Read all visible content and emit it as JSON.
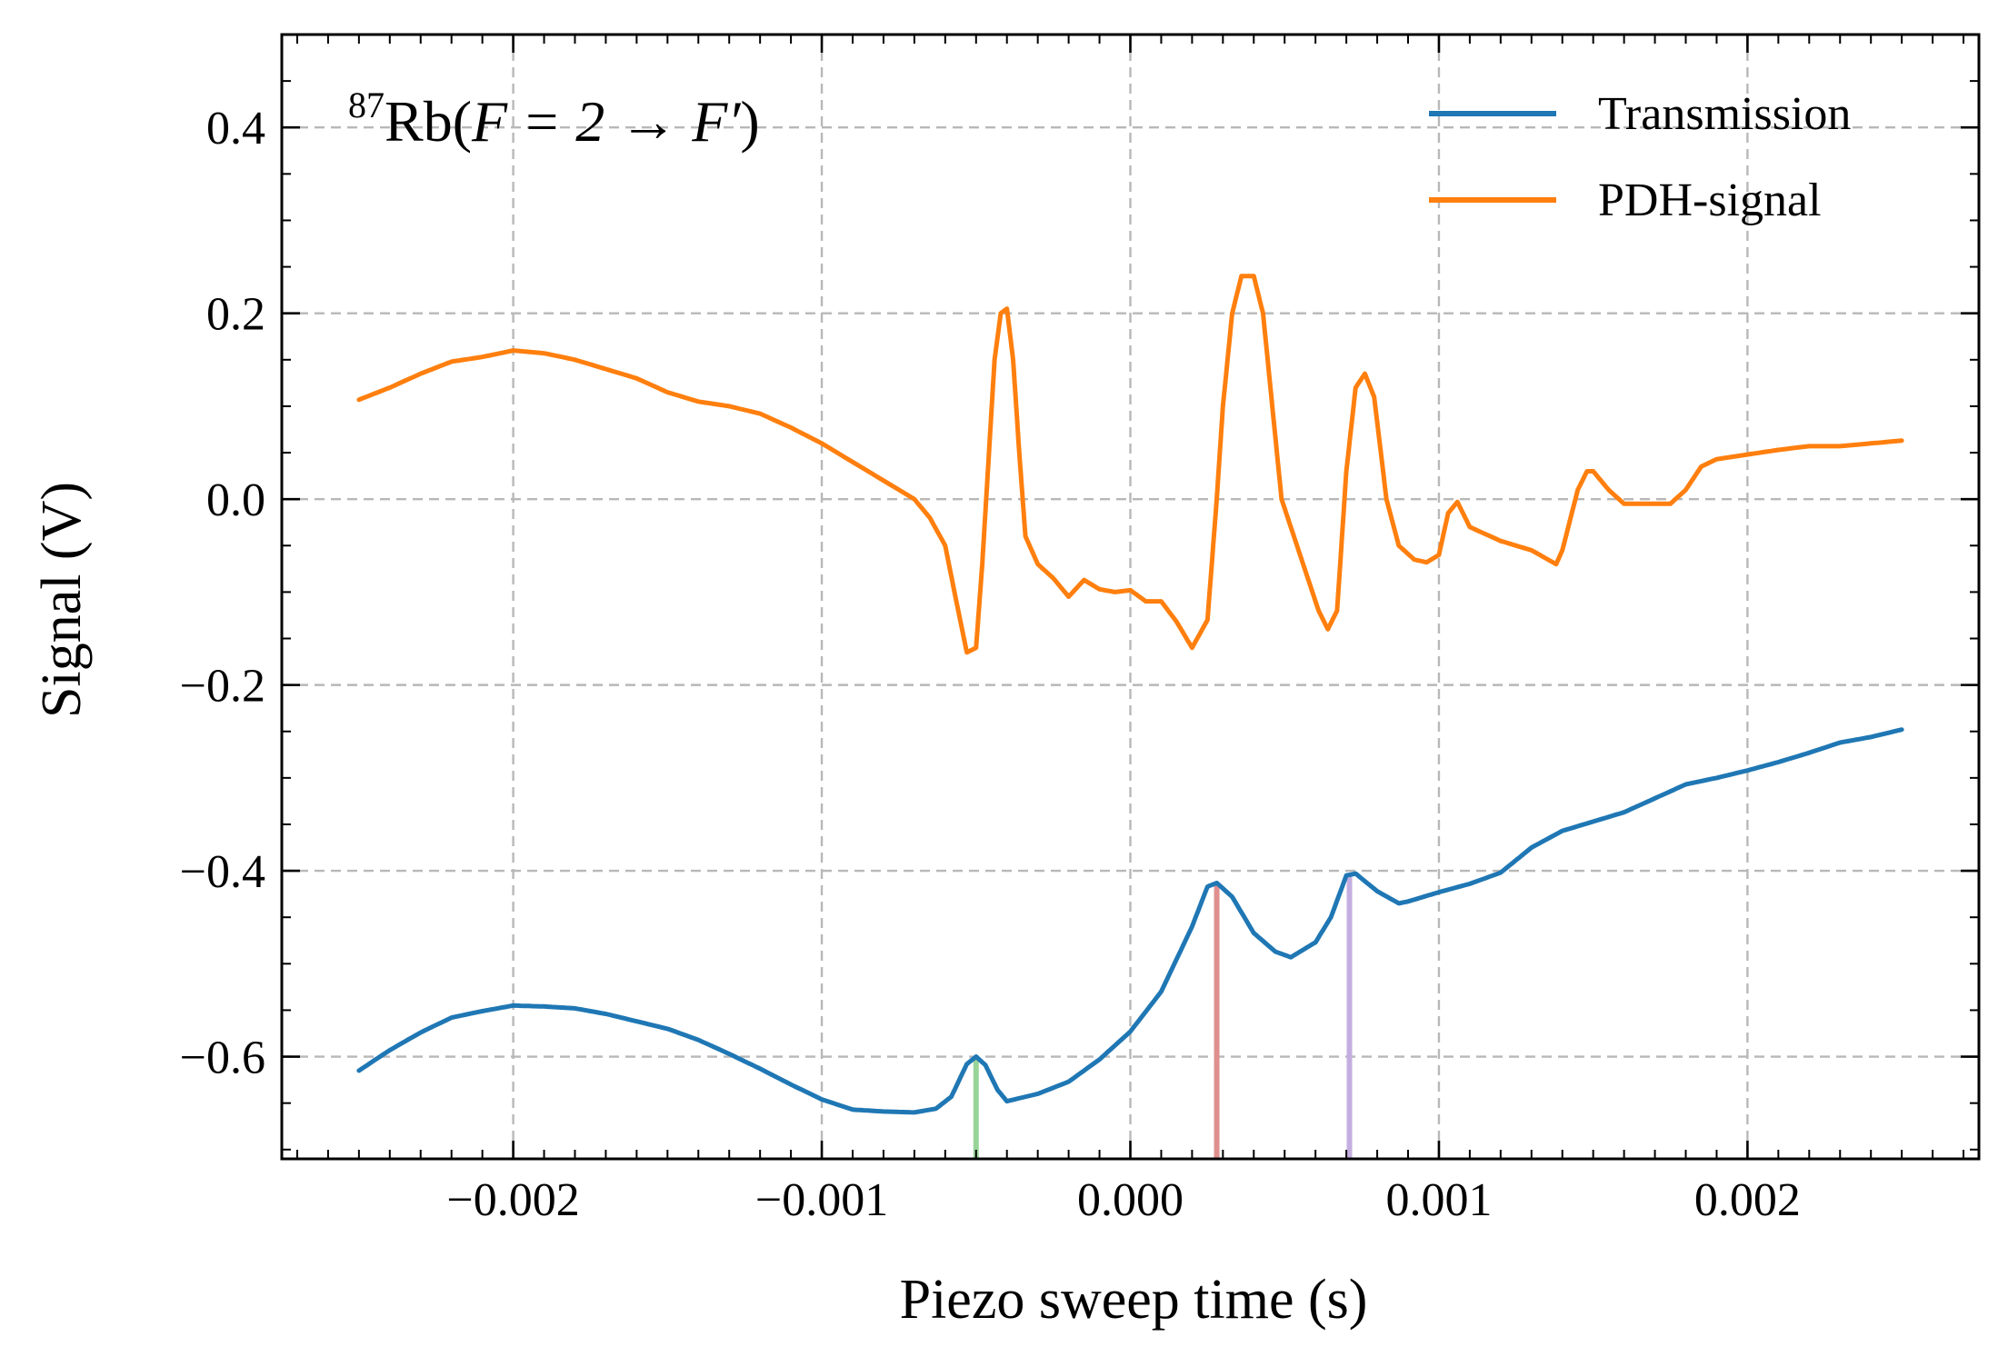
{
  "chart_data": {
    "type": "line",
    "title": "",
    "xlabel": "Piezo sweep time (s)",
    "ylabel": "Signal (V)",
    "xlim": [
      -0.00275,
      0.00275
    ],
    "ylim": [
      -0.71,
      0.5
    ],
    "grid": true,
    "legend_position": "top-right",
    "annotation": {
      "superscript": "87",
      "text_main": "Rb(",
      "text_math": "F = 2 → F′",
      "text_close": ")"
    },
    "x_ticks": [
      {
        "value": -0.002,
        "label": "−0.002"
      },
      {
        "value": -0.001,
        "label": "−0.001"
      },
      {
        "value": 0.0,
        "label": "0.000"
      },
      {
        "value": 0.001,
        "label": "0.001"
      },
      {
        "value": 0.002,
        "label": "0.002"
      }
    ],
    "y_ticks": [
      {
        "value": 0.4,
        "label": "0.4"
      },
      {
        "value": 0.2,
        "label": "0.2"
      },
      {
        "value": 0.0,
        "label": "0.0"
      },
      {
        "value": -0.2,
        "label": "−0.2"
      },
      {
        "value": -0.4,
        "label": "−0.4"
      },
      {
        "value": -0.6,
        "label": "−0.6"
      }
    ],
    "series": [
      {
        "name": "Transmission",
        "color": "#1f77b4",
        "points": [
          [
            -0.0025,
            -0.615
          ],
          [
            -0.0024,
            -0.593
          ],
          [
            -0.0023,
            -0.574
          ],
          [
            -0.0022,
            -0.558
          ],
          [
            -0.0021,
            -0.551
          ],
          [
            -0.002,
            -0.545
          ],
          [
            -0.0019,
            -0.546
          ],
          [
            -0.0018,
            -0.548
          ],
          [
            -0.0017,
            -0.554
          ],
          [
            -0.0016,
            -0.562
          ],
          [
            -0.0015,
            -0.57
          ],
          [
            -0.0014,
            -0.582
          ],
          [
            -0.0013,
            -0.597
          ],
          [
            -0.0012,
            -0.613
          ],
          [
            -0.0011,
            -0.63
          ],
          [
            -0.001,
            -0.646
          ],
          [
            -0.0009,
            -0.657
          ],
          [
            -0.0008,
            -0.659
          ],
          [
            -0.0007,
            -0.66
          ],
          [
            -0.00063,
            -0.656
          ],
          [
            -0.00058,
            -0.643
          ],
          [
            -0.00053,
            -0.608
          ],
          [
            -0.0005,
            -0.6
          ],
          [
            -0.00047,
            -0.609
          ],
          [
            -0.00043,
            -0.636
          ],
          [
            -0.0004,
            -0.648
          ],
          [
            -0.0003,
            -0.64
          ],
          [
            -0.0002,
            -0.627
          ],
          [
            -0.0001,
            -0.603
          ],
          [
            0.0,
            -0.573
          ],
          [
            0.0001,
            -0.53
          ],
          [
            0.0002,
            -0.46
          ],
          [
            0.00025,
            -0.417
          ],
          [
            0.00028,
            -0.413
          ],
          [
            0.00033,
            -0.428
          ],
          [
            0.0004,
            -0.467
          ],
          [
            0.00047,
            -0.487
          ],
          [
            0.00052,
            -0.493
          ],
          [
            0.0006,
            -0.477
          ],
          [
            0.00065,
            -0.45
          ],
          [
            0.0007,
            -0.405
          ],
          [
            0.00073,
            -0.403
          ],
          [
            0.0008,
            -0.422
          ],
          [
            0.00087,
            -0.435
          ],
          [
            0.0009,
            -0.433
          ],
          [
            0.001,
            -0.423
          ],
          [
            0.0011,
            -0.414
          ],
          [
            0.0012,
            -0.402
          ],
          [
            0.0013,
            -0.375
          ],
          [
            0.0014,
            -0.357
          ],
          [
            0.0015,
            -0.347
          ],
          [
            0.0016,
            -0.337
          ],
          [
            0.0017,
            -0.322
          ],
          [
            0.0018,
            -0.307
          ],
          [
            0.0019,
            -0.3
          ],
          [
            0.002,
            -0.292
          ],
          [
            0.0021,
            -0.283
          ],
          [
            0.0022,
            -0.273
          ],
          [
            0.0023,
            -0.262
          ],
          [
            0.0024,
            -0.256
          ],
          [
            0.0025,
            -0.248
          ]
        ]
      },
      {
        "name": "PDH-signal",
        "color": "#ff7f0e",
        "points": [
          [
            -0.0025,
            0.107
          ],
          [
            -0.0024,
            0.12
          ],
          [
            -0.0023,
            0.135
          ],
          [
            -0.0022,
            0.148
          ],
          [
            -0.0021,
            0.153
          ],
          [
            -0.002,
            0.16
          ],
          [
            -0.0019,
            0.157
          ],
          [
            -0.0018,
            0.15
          ],
          [
            -0.0017,
            0.14
          ],
          [
            -0.0016,
            0.13
          ],
          [
            -0.0015,
            0.115
          ],
          [
            -0.0014,
            0.105
          ],
          [
            -0.0013,
            0.1
          ],
          [
            -0.0012,
            0.092
          ],
          [
            -0.0011,
            0.077
          ],
          [
            -0.001,
            0.06
          ],
          [
            -0.0009,
            0.04
          ],
          [
            -0.0008,
            0.02
          ],
          [
            -0.0007,
            0.0
          ],
          [
            -0.00065,
            -0.02
          ],
          [
            -0.0006,
            -0.05
          ],
          [
            -0.00057,
            -0.1
          ],
          [
            -0.00053,
            -0.165
          ],
          [
            -0.0005,
            -0.16
          ],
          [
            -0.00048,
            -0.07
          ],
          [
            -0.00046,
            0.04
          ],
          [
            -0.00044,
            0.15
          ],
          [
            -0.00042,
            0.2
          ],
          [
            -0.0004,
            0.205
          ],
          [
            -0.00038,
            0.15
          ],
          [
            -0.00036,
            0.05
          ],
          [
            -0.00034,
            -0.04
          ],
          [
            -0.0003,
            -0.07
          ],
          [
            -0.00025,
            -0.085
          ],
          [
            -0.0002,
            -0.105
          ],
          [
            -0.00015,
            -0.087
          ],
          [
            -0.0001,
            -0.097
          ],
          [
            -5e-05,
            -0.1
          ],
          [
            0.0,
            -0.098
          ],
          [
            5e-05,
            -0.11
          ],
          [
            0.0001,
            -0.11
          ],
          [
            0.00015,
            -0.132
          ],
          [
            0.0002,
            -0.16
          ],
          [
            0.00025,
            -0.13
          ],
          [
            0.00028,
            0.0
          ],
          [
            0.0003,
            0.1
          ],
          [
            0.00033,
            0.2
          ],
          [
            0.00036,
            0.24
          ],
          [
            0.0004,
            0.24
          ],
          [
            0.00043,
            0.2
          ],
          [
            0.00046,
            0.1
          ],
          [
            0.00049,
            0.0
          ],
          [
            0.00052,
            -0.03
          ],
          [
            0.00055,
            -0.06
          ],
          [
            0.00058,
            -0.09
          ],
          [
            0.00061,
            -0.12
          ],
          [
            0.00064,
            -0.14
          ],
          [
            0.00067,
            -0.12
          ],
          [
            0.0007,
            0.03
          ],
          [
            0.00073,
            0.12
          ],
          [
            0.00076,
            0.135
          ],
          [
            0.00079,
            0.11
          ],
          [
            0.00083,
            0.0
          ],
          [
            0.00087,
            -0.05
          ],
          [
            0.00092,
            -0.065
          ],
          [
            0.00096,
            -0.068
          ],
          [
            0.001,
            -0.06
          ],
          [
            0.00103,
            -0.015
          ],
          [
            0.00106,
            -0.003
          ],
          [
            0.0011,
            -0.03
          ],
          [
            0.0012,
            -0.045
          ],
          [
            0.0013,
            -0.055
          ],
          [
            0.00138,
            -0.07
          ],
          [
            0.0014,
            -0.055
          ],
          [
            0.00145,
            0.01
          ],
          [
            0.00148,
            0.03
          ],
          [
            0.0015,
            0.03
          ],
          [
            0.00155,
            0.01
          ],
          [
            0.0016,
            -0.005
          ],
          [
            0.0017,
            -0.005
          ],
          [
            0.00175,
            -0.005
          ],
          [
            0.0018,
            0.01
          ],
          [
            0.00185,
            0.035
          ],
          [
            0.0019,
            0.043
          ],
          [
            0.002,
            0.048
          ],
          [
            0.0021,
            0.053
          ],
          [
            0.0022,
            0.057
          ],
          [
            0.0023,
            0.057
          ],
          [
            0.0024,
            0.06
          ],
          [
            0.0025,
            0.063
          ]
        ]
      }
    ],
    "markers": [
      {
        "x": -0.0005,
        "y_top": -0.6,
        "color": "#98d498"
      },
      {
        "x": 0.00028,
        "y_top": -0.413,
        "color": "#e08f8f"
      },
      {
        "x": 0.00071,
        "y_top": -0.403,
        "color": "#c4aee0"
      }
    ]
  }
}
